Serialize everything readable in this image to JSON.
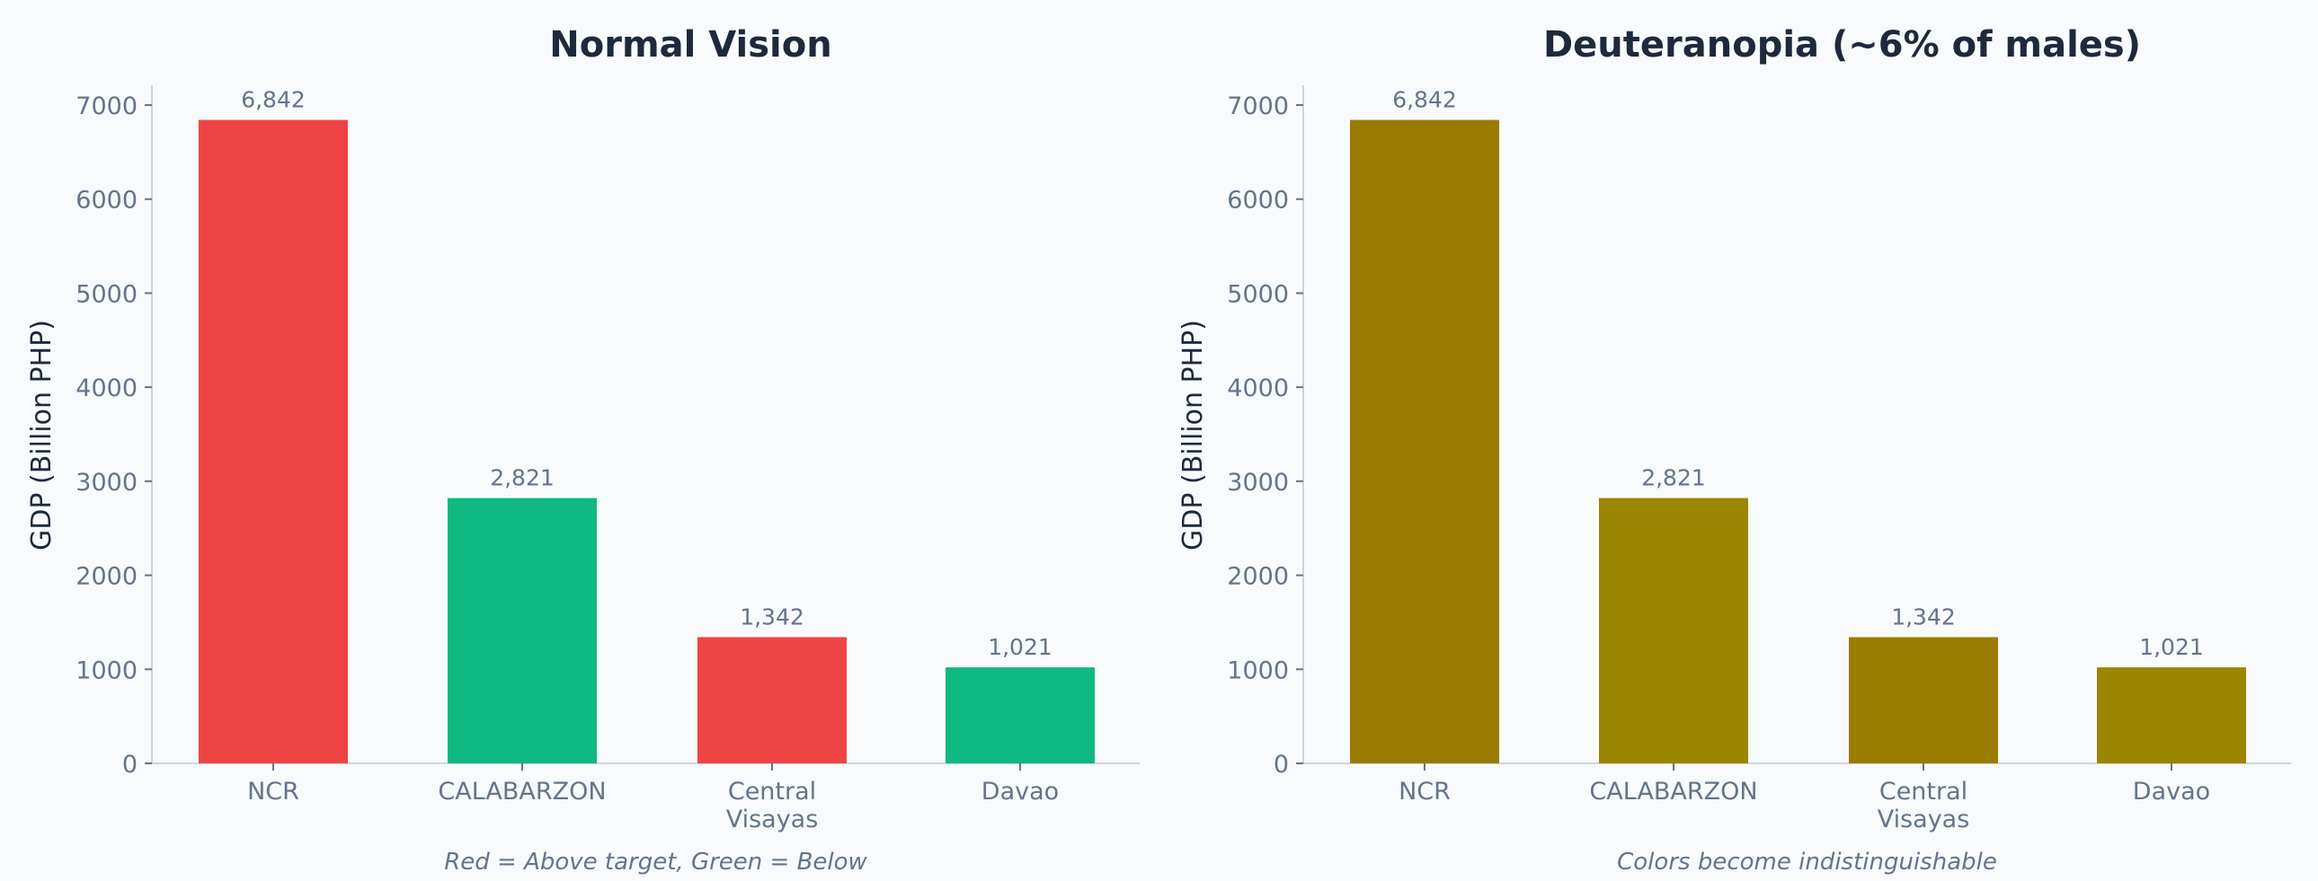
{
  "chart_data": [
    {
      "type": "bar",
      "title": "Normal Vision",
      "ylabel": "GDP (Billion PHP)",
      "xlabel": "",
      "categories": [
        "NCR",
        "CALABARZON",
        "Central\nVisayas",
        "Davao"
      ],
      "values": [
        6842,
        2821,
        1342,
        1021
      ],
      "data_labels": [
        "6,842",
        "2,821",
        "1,342",
        "1,021"
      ],
      "colors": [
        "#EF4444",
        "#10B981",
        "#EF4444",
        "#10B981"
      ],
      "yticks": [
        0,
        1000,
        2000,
        3000,
        4000,
        5000,
        6000,
        7000
      ],
      "ylim": [
        0,
        7200
      ],
      "grid": false,
      "note": "Red = Above target, Green = Below"
    },
    {
      "type": "bar",
      "title": "Deuteranopia (~6% of males)",
      "ylabel": "GDP (Billion PHP)",
      "xlabel": "",
      "categories": [
        "NCR",
        "CALABARZON",
        "Central\nVisayas",
        "Davao"
      ],
      "values": [
        6842,
        2821,
        1342,
        1021
      ],
      "data_labels": [
        "6,842",
        "2,821",
        "1,342",
        "1,021"
      ],
      "colors": [
        "#9A7B00",
        "#9A8600",
        "#9A7D00",
        "#9A8600"
      ],
      "yticks": [
        0,
        1000,
        2000,
        3000,
        4000,
        5000,
        6000,
        7000
      ],
      "ylim": [
        0,
        7200
      ],
      "grid": false,
      "note": "Colors become indistinguishable"
    }
  ]
}
